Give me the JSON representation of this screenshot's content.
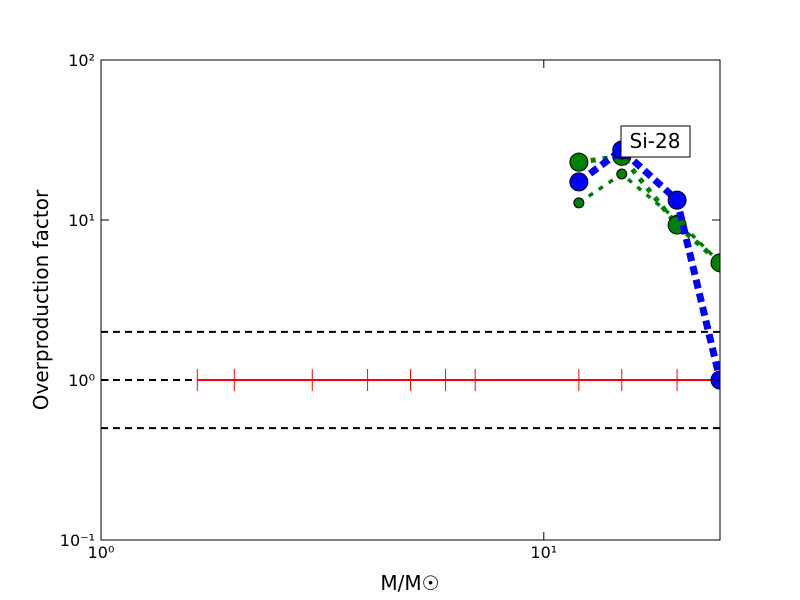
{
  "chart_data": {
    "type": "line",
    "xlabel": "M/M☉",
    "ylabel": "Overproduction factor",
    "log_x": true,
    "log_y": true,
    "xlim": [
      1,
      25
    ],
    "ylim": [
      0.1,
      100
    ],
    "xticks": [
      {
        "value": 1,
        "label": "10⁰"
      },
      {
        "value": 10,
        "label": "10¹"
      }
    ],
    "yticks": [
      {
        "value": 0.1,
        "label": "10⁻¹"
      },
      {
        "value": 1,
        "label": "10⁰"
      },
      {
        "value": 10,
        "label": "10¹"
      },
      {
        "value": 100,
        "label": "10²"
      }
    ],
    "hlines": [
      2,
      1,
      0.5
    ],
    "hline_color": "#000000",
    "annotation": "Si-28",
    "series": [
      {
        "color": "#ff0000",
        "line": "solid",
        "marker": "vline",
        "x": [
          1.65,
          2,
          3,
          4,
          5,
          6,
          7,
          12,
          15,
          20,
          25
        ],
        "values": [
          1,
          1,
          1,
          1,
          1,
          1,
          1,
          1,
          1,
          1,
          1
        ]
      },
      {
        "color": "#008000",
        "line": "dotted",
        "marker": "small",
        "x": [
          12,
          15,
          20,
          25
        ],
        "values": [
          12.8,
          19.4,
          10,
          5.4
        ]
      },
      {
        "color": "#008000",
        "line": "dotted",
        "marker": "large",
        "x": [
          12,
          15,
          20,
          25
        ],
        "values": [
          23,
          25,
          9.3,
          5.4
        ]
      },
      {
        "color": "#0000ff",
        "line": "dashed",
        "marker": "large",
        "x": [
          12,
          15,
          20,
          25
        ],
        "values": [
          17.3,
          27.4,
          13.3,
          1
        ]
      }
    ]
  }
}
